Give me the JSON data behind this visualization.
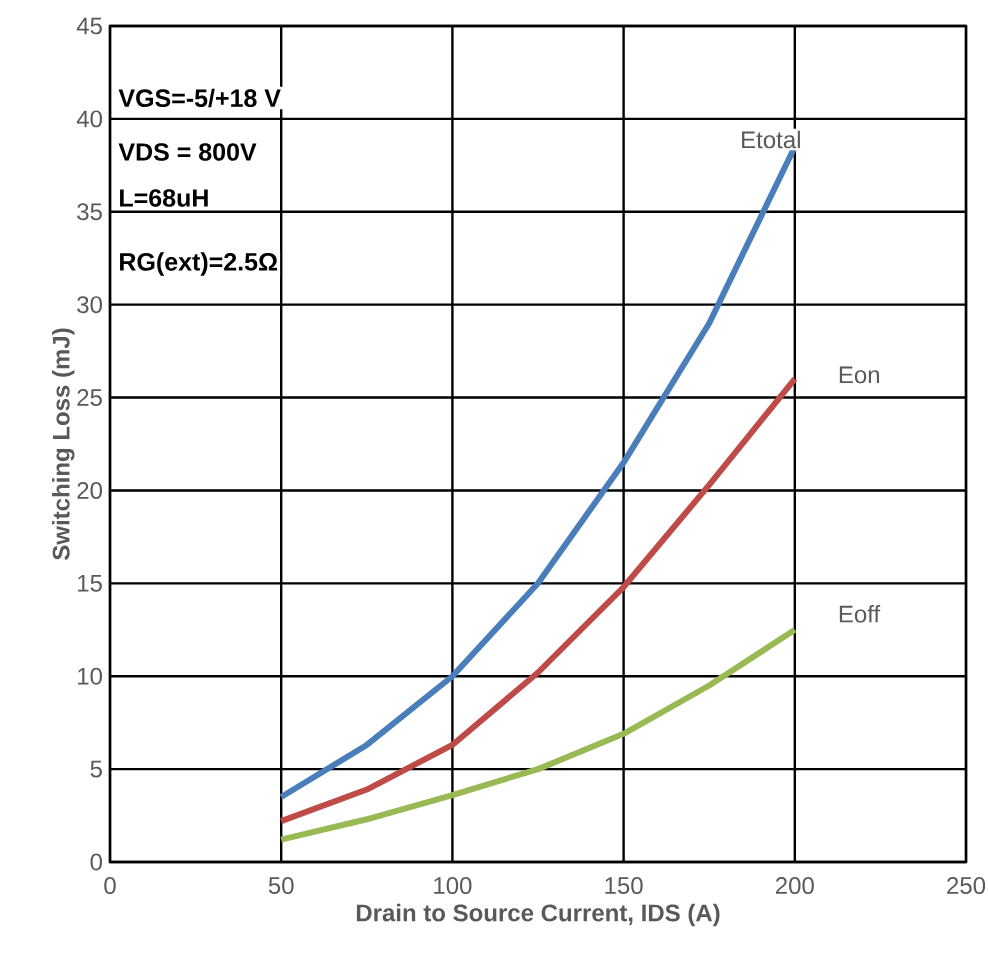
{
  "chart_data": {
    "type": "line",
    "xlabel": "Drain to Source Current, IDS (A)",
    "ylabel": "Switching Loss (mJ)",
    "x": [
      50,
      75,
      100,
      125,
      150,
      175,
      200
    ],
    "series": [
      {
        "name": "Etotal",
        "color": "#4a7ebb",
        "values": [
          3.5,
          6.3,
          10,
          15,
          21.5,
          29,
          38.5
        ]
      },
      {
        "name": "Eon",
        "color": "#be4b48",
        "values": [
          2.2,
          3.9,
          6.3,
          10.2,
          14.8,
          20.3,
          26
        ]
      },
      {
        "name": "Eoff",
        "color": "#98b954",
        "values": [
          1.2,
          2.3,
          3.6,
          5,
          6.9,
          9.5,
          12.5
        ]
      }
    ],
    "annotations": [
      "VGS=-5/+18 V",
      "VDS = 800V",
      "L=68uH",
      "RG(ext)=2.5Ω"
    ],
    "xlim": [
      0,
      250
    ],
    "ylim": [
      0,
      45
    ],
    "xticks": [
      0,
      50,
      100,
      150,
      200,
      250
    ],
    "yticks": [
      0,
      5,
      10,
      15,
      20,
      25,
      30,
      35,
      40,
      45
    ],
    "grid": true,
    "marker": "none",
    "line_style": "solid"
  }
}
